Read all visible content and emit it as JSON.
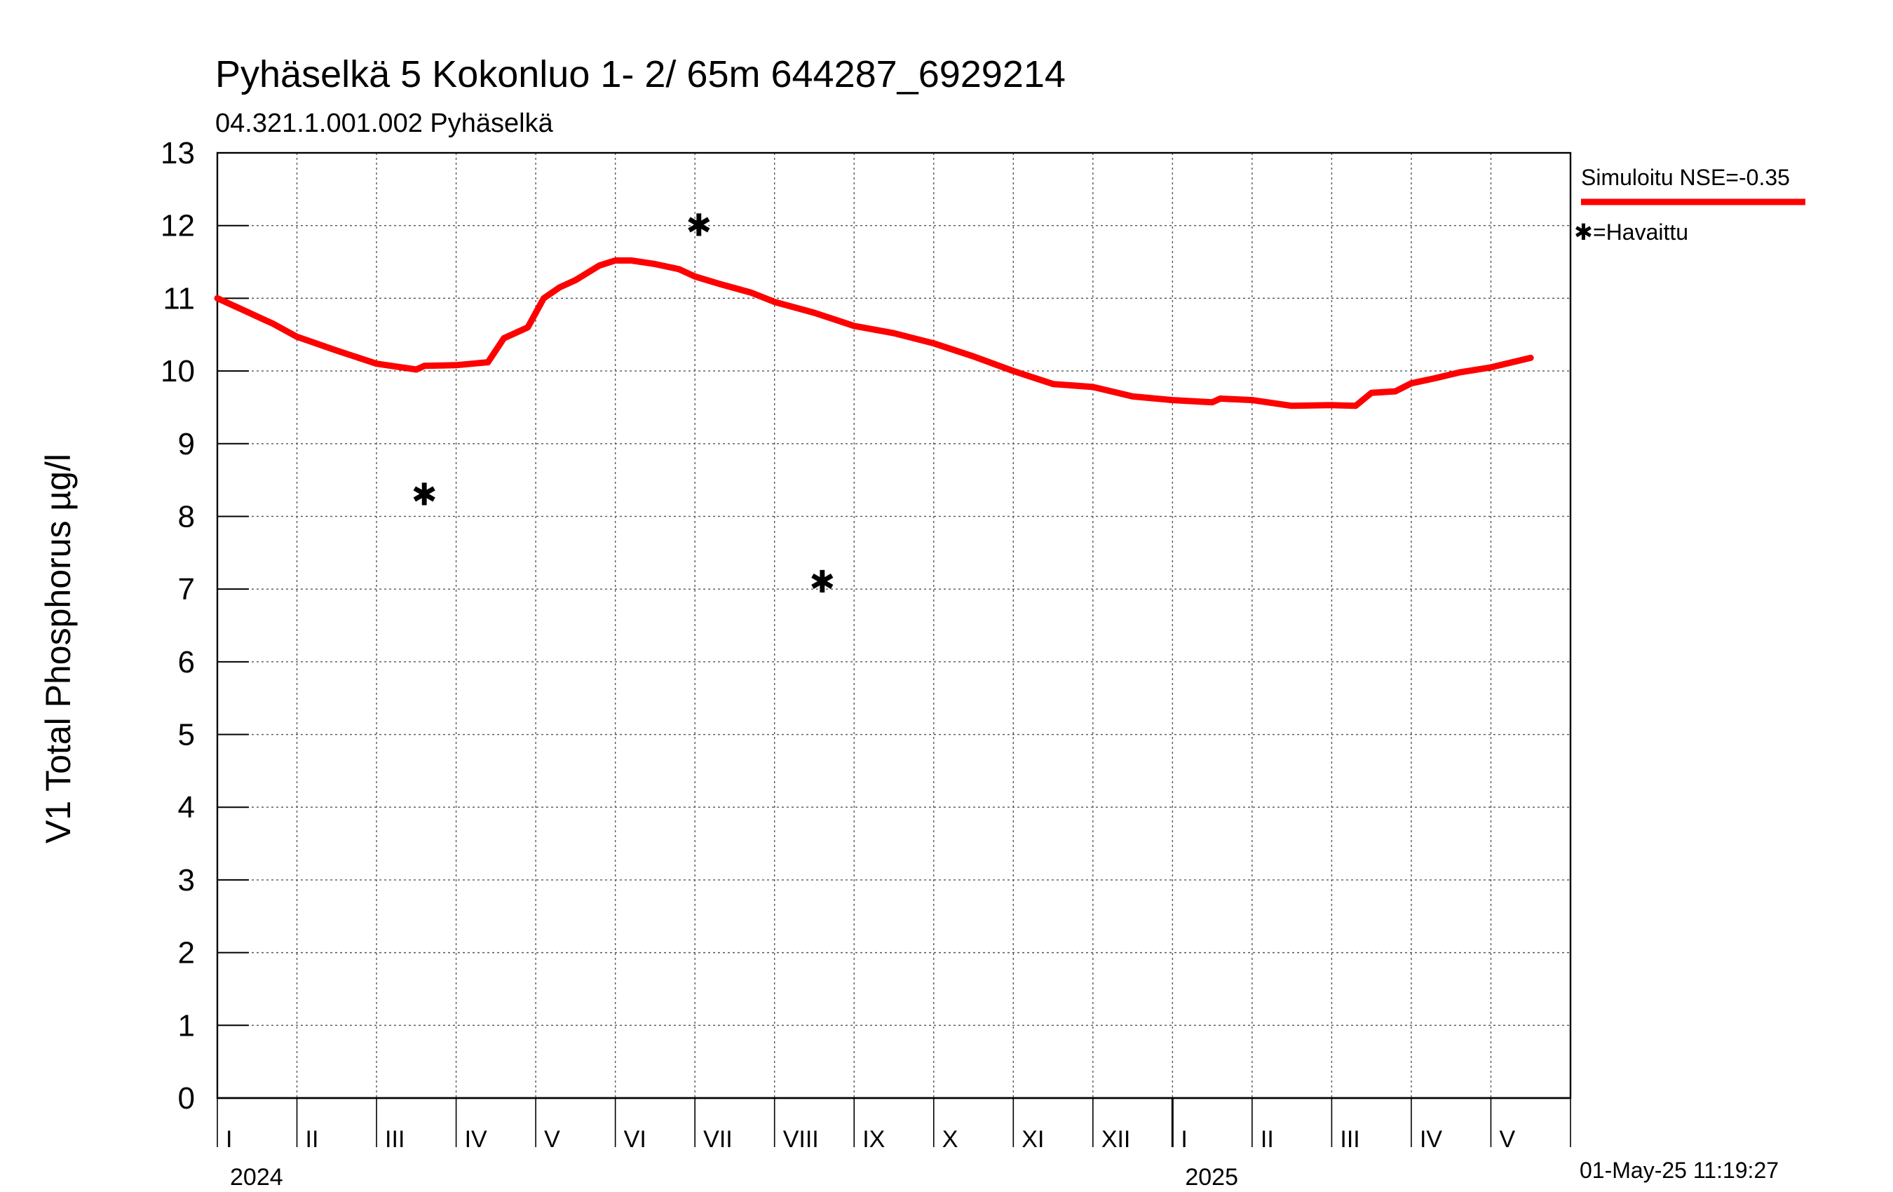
{
  "chart_data": {
    "type": "line",
    "title": "Pyhäselkä 5 Kokonluo 1- 2/ 65m  644287_6929214",
    "subtitle": "04.321.1.001.002 Pyhäselkä",
    "ylabel": "V1 Total Phosphorus µg/l",
    "ylim": [
      0,
      13
    ],
    "yticks": [
      "0",
      "1",
      "2",
      "3",
      "4",
      "5",
      "6",
      "7",
      "8",
      "9",
      "10",
      "11",
      "12",
      "13"
    ],
    "x_start": "2024-01-01",
    "x_end": "2025-06-01",
    "grid": true,
    "months": [
      "I",
      "II",
      "III",
      "IV",
      "V",
      "VI",
      "VII",
      "VIII",
      "IX",
      "X",
      "XI",
      "XII",
      "I",
      "II",
      "III",
      "IV",
      "V"
    ],
    "years": [
      "2024",
      "2025"
    ],
    "legend": {
      "simulated": "Simuloitu NSE=-0.35",
      "observed": "=Havaittu",
      "position": "top-right"
    },
    "timestamp": "01-May-25 11:19:27",
    "series": [
      {
        "name": "Simuloitu",
        "color": "#ff0000",
        "style": "line",
        "points": [
          [
            0,
            11.0
          ],
          [
            0.3,
            10.85
          ],
          [
            0.7,
            10.65
          ],
          [
            1.0,
            10.47
          ],
          [
            1.5,
            10.28
          ],
          [
            2.0,
            10.1
          ],
          [
            2.5,
            10.02
          ],
          [
            2.6,
            10.07
          ],
          [
            3.0,
            10.08
          ],
          [
            3.2,
            10.1
          ],
          [
            3.4,
            10.12
          ],
          [
            3.6,
            10.45
          ],
          [
            3.9,
            10.6
          ],
          [
            4.1,
            11.0
          ],
          [
            4.3,
            11.15
          ],
          [
            4.5,
            11.25
          ],
          [
            4.8,
            11.45
          ],
          [
            5.0,
            11.52
          ],
          [
            5.2,
            11.52
          ],
          [
            5.5,
            11.47
          ],
          [
            5.8,
            11.4
          ],
          [
            6.0,
            11.3
          ],
          [
            6.3,
            11.2
          ],
          [
            6.7,
            11.08
          ],
          [
            7.0,
            10.95
          ],
          [
            7.5,
            10.8
          ],
          [
            8.0,
            10.62
          ],
          [
            8.5,
            10.52
          ],
          [
            9.0,
            10.38
          ],
          [
            9.5,
            10.2
          ],
          [
            10.0,
            10.0
          ],
          [
            10.5,
            9.82
          ],
          [
            11.0,
            9.78
          ],
          [
            11.5,
            9.65
          ],
          [
            12.0,
            9.6
          ],
          [
            12.5,
            9.57
          ],
          [
            12.6,
            9.62
          ],
          [
            13.0,
            9.6
          ],
          [
            13.5,
            9.52
          ],
          [
            14.0,
            9.53
          ],
          [
            14.3,
            9.52
          ],
          [
            14.5,
            9.7
          ],
          [
            14.8,
            9.72
          ],
          [
            15.0,
            9.83
          ],
          [
            15.3,
            9.9
          ],
          [
            15.6,
            9.98
          ],
          [
            16.0,
            10.05
          ],
          [
            16.5,
            10.18
          ]
        ]
      },
      {
        "name": "Havaittu",
        "color": "#000000",
        "style": "marker",
        "marker": "✱",
        "points": [
          [
            2.6,
            8.3
          ],
          [
            6.05,
            12.0
          ],
          [
            7.6,
            7.1
          ]
        ]
      }
    ]
  }
}
